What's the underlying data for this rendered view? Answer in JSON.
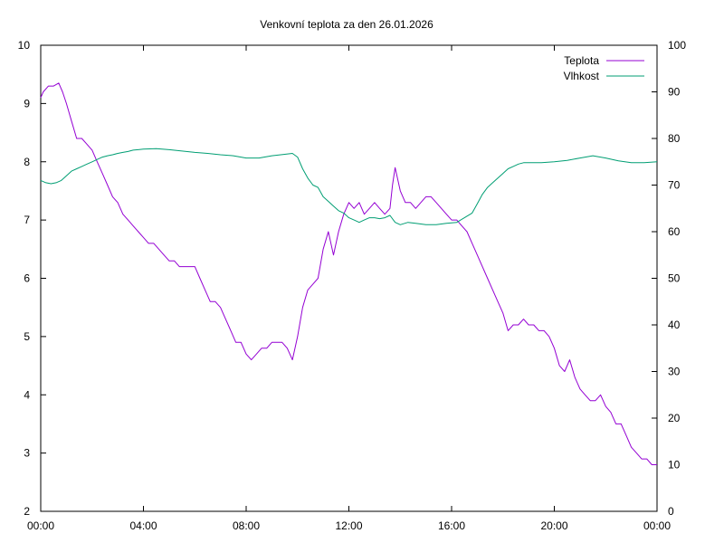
{
  "chart_data": {
    "type": "line",
    "title": "Venkovní teplota za den 26.01.2026",
    "x_axis": {
      "unit": "hours",
      "range": [
        0,
        24
      ],
      "ticks": [
        {
          "value": 0,
          "label": "00:00"
        },
        {
          "value": 4,
          "label": "04:00"
        },
        {
          "value": 8,
          "label": "08:00"
        },
        {
          "value": 12,
          "label": "12:00"
        },
        {
          "value": 16,
          "label": "16:00"
        },
        {
          "value": 20,
          "label": "20:00"
        },
        {
          "value": 24,
          "label": "00:00"
        }
      ]
    },
    "y_left": {
      "range": [
        2,
        10
      ],
      "ticks": [
        "2",
        "3",
        "4",
        "5",
        "6",
        "7",
        "8",
        "9",
        "10"
      ]
    },
    "y_right": {
      "range": [
        0,
        100
      ],
      "ticks": [
        "0",
        "10",
        "20",
        "30",
        "40",
        "50",
        "60",
        "70",
        "80",
        "90",
        "100"
      ]
    },
    "grid": false,
    "legend_position": "top-right",
    "series": [
      {
        "name": "Teplota",
        "axis": "left",
        "color": "#9400d3",
        "x": [
          0,
          0.1,
          0.3,
          0.5,
          0.7,
          0.85,
          1.0,
          1.2,
          1.4,
          1.6,
          1.8,
          2.0,
          2.2,
          2.4,
          2.6,
          2.8,
          3.0,
          3.2,
          3.4,
          3.6,
          3.8,
          4.0,
          4.2,
          4.4,
          4.6,
          4.8,
          5.0,
          5.2,
          5.4,
          5.6,
          5.8,
          6.0,
          6.2,
          6.4,
          6.6,
          6.8,
          7.0,
          7.2,
          7.4,
          7.6,
          7.8,
          8.0,
          8.2,
          8.4,
          8.6,
          8.8,
          9.0,
          9.2,
          9.4,
          9.6,
          9.8,
          10.0,
          10.2,
          10.4,
          10.6,
          10.8,
          11.0,
          11.2,
          11.4,
          11.6,
          11.8,
          12.0,
          12.2,
          12.4,
          12.6,
          12.8,
          13.0,
          13.2,
          13.4,
          13.6,
          13.7,
          13.8,
          14.0,
          14.2,
          14.4,
          14.6,
          14.8,
          15.0,
          15.2,
          15.4,
          15.6,
          15.8,
          16.0,
          16.2,
          16.4,
          16.6,
          16.8,
          17.0,
          17.2,
          17.4,
          17.6,
          17.8,
          18.0,
          18.2,
          18.4,
          18.6,
          18.8,
          19.0,
          19.2,
          19.4,
          19.6,
          19.8,
          20.0,
          20.2,
          20.4,
          20.6,
          20.8,
          21.0,
          21.2,
          21.4,
          21.6,
          21.8,
          22.0,
          22.2,
          22.4,
          22.6,
          22.8,
          23.0,
          23.2,
          23.4,
          23.6,
          23.8,
          24.0
        ],
        "y": [
          9.1,
          9.2,
          9.3,
          9.3,
          9.35,
          9.2,
          9.0,
          8.7,
          8.4,
          8.4,
          8.3,
          8.2,
          8.0,
          7.8,
          7.6,
          7.4,
          7.3,
          7.1,
          7.0,
          6.9,
          6.8,
          6.7,
          6.6,
          6.6,
          6.5,
          6.4,
          6.3,
          6.3,
          6.2,
          6.2,
          6.2,
          6.2,
          6.0,
          5.8,
          5.6,
          5.6,
          5.5,
          5.3,
          5.1,
          4.9,
          4.9,
          4.7,
          4.6,
          4.7,
          4.8,
          4.8,
          4.9,
          4.9,
          4.9,
          4.8,
          4.6,
          5.0,
          5.5,
          5.8,
          5.9,
          6.0,
          6.5,
          6.8,
          6.4,
          6.8,
          7.1,
          7.3,
          7.2,
          7.3,
          7.1,
          7.2,
          7.3,
          7.2,
          7.1,
          7.2,
          7.6,
          7.9,
          7.5,
          7.3,
          7.3,
          7.2,
          7.3,
          7.4,
          7.4,
          7.3,
          7.2,
          7.1,
          7.0,
          7.0,
          6.9,
          6.8,
          6.6,
          6.4,
          6.2,
          6.0,
          5.8,
          5.6,
          5.4,
          5.1,
          5.2,
          5.2,
          5.3,
          5.2,
          5.2,
          5.1,
          5.1,
          5.0,
          4.8,
          4.5,
          4.4,
          4.6,
          4.3,
          4.1,
          4.0,
          3.9,
          3.9,
          4.0,
          3.8,
          3.7,
          3.5,
          3.5,
          3.3,
          3.1,
          3.0,
          2.9,
          2.9,
          2.8,
          2.8
        ]
      },
      {
        "name": "Vlhkost",
        "axis": "right",
        "color": "#009e73",
        "x": [
          0,
          0.2,
          0.4,
          0.6,
          0.8,
          1.0,
          1.2,
          1.4,
          1.6,
          1.8,
          2.0,
          2.2,
          2.4,
          2.6,
          2.8,
          3.0,
          3.2,
          3.4,
          3.6,
          3.8,
          4.0,
          4.5,
          5.0,
          5.5,
          6.0,
          6.5,
          7.0,
          7.5,
          8.0,
          8.5,
          9.0,
          9.5,
          9.8,
          10.0,
          10.2,
          10.4,
          10.6,
          10.8,
          11.0,
          11.2,
          11.4,
          11.6,
          11.8,
          12.0,
          12.2,
          12.4,
          12.6,
          12.8,
          13.0,
          13.2,
          13.4,
          13.6,
          13.8,
          14.0,
          14.3,
          14.6,
          15.0,
          15.4,
          15.8,
          16.2,
          16.5,
          16.8,
          17.0,
          17.2,
          17.4,
          17.6,
          17.8,
          18.0,
          18.2,
          18.4,
          18.6,
          18.8,
          19.0,
          19.5,
          20.0,
          20.5,
          21.0,
          21.5,
          22.0,
          22.5,
          23.0,
          23.5,
          24.0
        ],
        "y": [
          71,
          70.5,
          70.3,
          70.5,
          71,
          72,
          73,
          73.5,
          74,
          74.5,
          75,
          75.5,
          76,
          76.3,
          76.5,
          76.8,
          77,
          77.2,
          77.5,
          77.6,
          77.7,
          77.8,
          77.6,
          77.3,
          77,
          76.8,
          76.5,
          76.3,
          75.8,
          75.8,
          76.3,
          76.6,
          76.8,
          76,
          73.5,
          71.5,
          70,
          69.5,
          67.5,
          66.5,
          65.5,
          64.5,
          64,
          63,
          62.5,
          62,
          62.5,
          63,
          63,
          62.8,
          63,
          63.5,
          62,
          61.5,
          62,
          61.8,
          61.5,
          61.5,
          61.8,
          62,
          63,
          64,
          66,
          68,
          69.5,
          70.5,
          71.5,
          72.5,
          73.5,
          74,
          74.5,
          74.8,
          74.8,
          74.8,
          75,
          75.3,
          75.8,
          76.3,
          75.8,
          75.2,
          74.8,
          74.8,
          75
        ]
      }
    ]
  }
}
